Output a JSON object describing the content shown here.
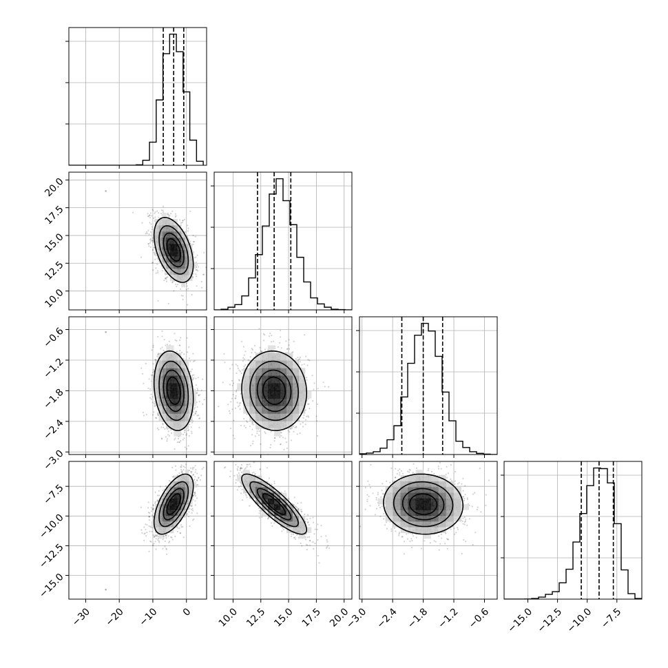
{
  "chart_data": {
    "type": "corner",
    "grid": true,
    "parameters": [
      {
        "range": [
          -35,
          6
        ],
        "ticks": [
          -30,
          -20,
          -10,
          0
        ],
        "tick_labels": [
          "−30",
          "−20",
          "−10",
          "0"
        ],
        "hist_bins": [
          -35,
          -33,
          -31,
          -29,
          -27,
          -25,
          -23,
          -21,
          -19,
          -17,
          -15,
          -13,
          -11,
          -9,
          -7,
          -5,
          -3,
          -1,
          1,
          3,
          5
        ],
        "hist_counts": [
          0,
          0,
          0,
          0,
          0,
          0,
          0,
          0,
          0,
          0,
          5,
          50,
          230,
          650,
          1110,
          1305,
          1130,
          730,
          250,
          40
        ],
        "quantiles": [
          -6.9,
          -3.8,
          -0.8
        ],
        "gaussian": {
          "mean": -3.8,
          "sd": 3.0
        }
      },
      {
        "range": [
          8.3,
          20.7
        ],
        "ticks": [
          10.0,
          12.5,
          15.0,
          17.5,
          20.0
        ],
        "tick_labels": [
          "10.0",
          "12.5",
          "15.0",
          "17.5",
          "20.0"
        ],
        "hist_bins": [
          8.3,
          8.92,
          9.54,
          10.16,
          10.78,
          11.4,
          12.02,
          12.64,
          13.26,
          13.88,
          14.5,
          15.12,
          15.74,
          16.36,
          16.98,
          17.6,
          18.22,
          18.84,
          19.46,
          20.08,
          20.7
        ],
        "hist_counts": [
          0,
          5,
          20,
          40,
          105,
          240,
          415,
          630,
          870,
          985,
          820,
          640,
          395,
          210,
          90,
          45,
          20,
          5,
          2,
          0
        ],
        "quantiles": [
          12.2,
          13.7,
          15.2
        ],
        "gaussian": {
          "mean": 13.7,
          "sd": 1.5
        }
      },
      {
        "range": [
          -3.05,
          -0.35
        ],
        "ticks": [
          -3.0,
          -2.4,
          -1.8,
          -1.2,
          -0.6
        ],
        "tick_labels": [
          "−3.0",
          "−2.4",
          "−1.8",
          "−1.2",
          "−0.6"
        ],
        "hist_bins": [
          -3.05,
          -2.915,
          -2.78,
          -2.645,
          -2.51,
          -2.375,
          -2.24,
          -2.105,
          -1.97,
          -1.835,
          -1.7,
          -1.565,
          -1.43,
          -1.295,
          -1.16,
          -1.025,
          -0.89,
          -0.755,
          -0.62,
          -0.485,
          -0.35
        ],
        "hist_counts": [
          5,
          10,
          20,
          45,
          105,
          205,
          410,
          650,
          850,
          935,
          880,
          700,
          445,
          240,
          95,
          50,
          20,
          8,
          3,
          0
        ],
        "quantiles": [
          -2.22,
          -1.8,
          -1.42
        ],
        "gaussian": {
          "mean": -1.8,
          "sd": 0.4
        }
      },
      {
        "range": [
          -17,
          -5.4
        ],
        "ticks": [
          -15.0,
          -12.5,
          -10.0,
          -7.5
        ],
        "tick_labels": [
          "−15.0",
          "−12.5",
          "−10.0",
          "−7.5"
        ],
        "hist_bins": [
          -17,
          -16.42,
          -15.84,
          -15.26,
          -14.68,
          -14.1,
          -13.52,
          -12.94,
          -12.36,
          -11.78,
          -11.2,
          -10.62,
          -10.04,
          -9.46,
          -8.88,
          -8.3,
          -7.72,
          -7.14,
          -6.56,
          -5.98,
          -5.4
        ],
        "hist_counts": [
          0,
          0,
          0,
          1,
          5,
          15,
          35,
          55,
          120,
          220,
          420,
          630,
          835,
          965,
          960,
          855,
          555,
          215,
          40,
          5
        ],
        "quantiles": [
          -10.5,
          -9.0,
          -7.8
        ],
        "gaussian": {
          "mean": -9.0,
          "sd": 1.3
        }
      }
    ],
    "correlations": [
      [
        1.0,
        -0.45,
        -0.2,
        0.6
      ],
      [
        -0.45,
        1.0,
        -0.05,
        -0.85
      ],
      [
        -0.2,
        -0.05,
        1.0,
        -0.05
      ],
      [
        0.6,
        -0.85,
        -0.05,
        1.0
      ]
    ],
    "outliers": [
      {
        "row": 1,
        "col": 0,
        "x": -24,
        "y": 19.0
      },
      {
        "row": 2,
        "col": 0,
        "x": -24,
        "y": -0.65
      },
      {
        "row": 3,
        "col": 0,
        "x": -24,
        "y": -16.2
      }
    ],
    "contour_levels": [
      0.8,
      0.6,
      0.35,
      0.15
    ]
  }
}
